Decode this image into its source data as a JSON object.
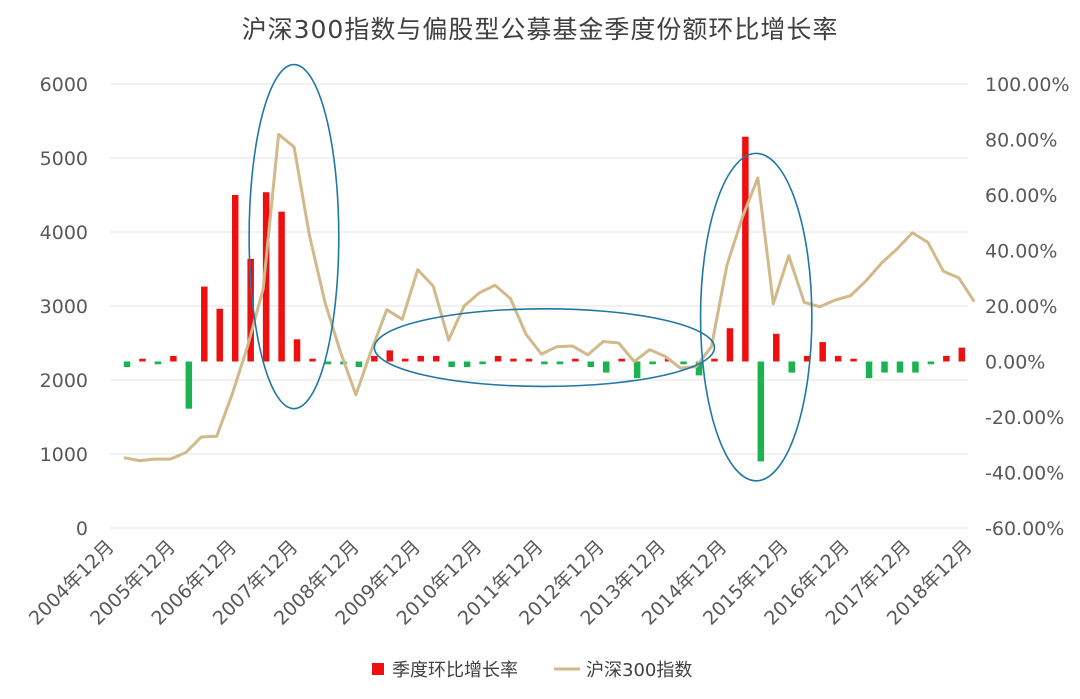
{
  "chart_data": {
    "type": "bar+line",
    "title": "沪深300指数与偏股型公募基金季度份额环比增长率",
    "x_tick_labels": [
      "2004年12月",
      "2005年12月",
      "2006年12月",
      "2007年12月",
      "2008年12月",
      "2009年12月",
      "2010年12月",
      "2011年12月",
      "2012年12月",
      "2013年12月",
      "2014年12月",
      "2015年12月",
      "2016年12月",
      "2017年12月",
      "2018年12月"
    ],
    "y_left": {
      "ticks": [
        "0",
        "1000",
        "2000",
        "3000",
        "4000",
        "5000",
        "6000"
      ],
      "range": [
        0,
        6000
      ]
    },
    "y_right": {
      "ticks": [
        "-60.00%",
        "-40.00%",
        "-20.00%",
        "0.00%",
        "20.00%",
        "40.00%",
        "60.00%",
        "80.00%",
        "100.00%"
      ],
      "range": [
        -60,
        100
      ],
      "unit": "%"
    },
    "series": [
      {
        "name": "季度环比增长率",
        "type": "bar",
        "axis": "right",
        "positive_color": "#ee1010",
        "negative_color": "#1ab350",
        "values": [
          -2,
          1,
          -1,
          2,
          -17,
          27,
          19,
          60,
          37,
          61,
          54,
          8,
          1,
          -1,
          -1,
          -2,
          2,
          4,
          1,
          2,
          2,
          -2,
          -2,
          -1,
          2,
          1,
          1,
          -1,
          -1,
          1,
          -2,
          -4,
          1,
          -6,
          -1,
          1,
          -1,
          -5,
          1,
          12,
          81,
          -36,
          10,
          -4,
          2,
          7,
          2,
          1,
          -6,
          -4,
          -4,
          -4,
          -1,
          2,
          5
        ]
      },
      {
        "name": "沪深300指数",
        "type": "line",
        "axis": "left",
        "color": "#d2b98a",
        "values": [
          950,
          910,
          930,
          930,
          1020,
          1230,
          1240,
          1810,
          2460,
          3230,
          5320,
          5150,
          3950,
          3050,
          2380,
          1800,
          2400,
          2950,
          2820,
          3490,
          3270,
          2540,
          3000,
          3180,
          3280,
          3100,
          2620,
          2350,
          2450,
          2460,
          2340,
          2520,
          2500,
          2250,
          2410,
          2320,
          2160,
          2180,
          2450,
          3550,
          4200,
          4730,
          3030,
          3680,
          3050,
          2990,
          3080,
          3140,
          3340,
          3580,
          3770,
          3990,
          3860,
          3470,
          3380,
          3060
        ]
      }
    ],
    "legend": {
      "position": "bottom"
    },
    "annotations": [
      {
        "type": "ellipse",
        "color": "#1f77a4",
        "cx_index": 10.8,
        "cy": 45,
        "rx_quarters": 2.9,
        "ry_pct": 62
      },
      {
        "type": "ellipse",
        "color": "#1f77a4",
        "cx_index": 27,
        "cy": 5,
        "rx_quarters": 11,
        "ry_pct": 14
      },
      {
        "type": "ellipse",
        "color": "#1f77a4",
        "cx_index": 40.7,
        "cy": 16,
        "rx_quarters": 3.6,
        "ry_pct": 59
      }
    ],
    "grid": "horizontal"
  }
}
